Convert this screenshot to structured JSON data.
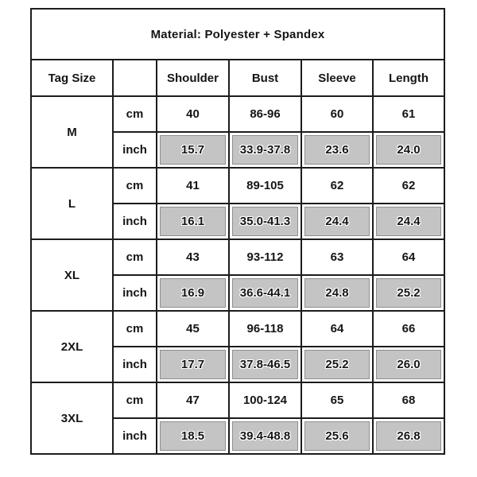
{
  "title": "Material: Polyester + Spandex",
  "columns": [
    "Tag Size",
    "",
    "Shoulder",
    "Bust",
    "Sleeve",
    "Length"
  ],
  "units": [
    "cm",
    "inch"
  ],
  "rows": [
    {
      "size": "M",
      "cm": [
        "40",
        "86-96",
        "60",
        "61"
      ],
      "inch": [
        "15.7",
        "33.9-37.8",
        "23.6",
        "24.0"
      ]
    },
    {
      "size": "L",
      "cm": [
        "41",
        "89-105",
        "62",
        "62"
      ],
      "inch": [
        "16.1",
        "35.0-41.3",
        "24.4",
        "24.4"
      ]
    },
    {
      "size": "XL",
      "cm": [
        "43",
        "93-112",
        "63",
        "64"
      ],
      "inch": [
        "16.9",
        "36.6-44.1",
        "24.8",
        "25.2"
      ]
    },
    {
      "size": "2XL",
      "cm": [
        "45",
        "96-118",
        "64",
        "66"
      ],
      "inch": [
        "17.7",
        "37.8-46.5",
        "25.2",
        "26.0"
      ]
    },
    {
      "size": "3XL",
      "cm": [
        "47",
        "100-124",
        "65",
        "68"
      ],
      "inch": [
        "18.5",
        "39.4-48.8",
        "25.6",
        "26.8"
      ]
    }
  ],
  "colors": {
    "grid": "#1c1c1c",
    "gray_fill": "#c4c4c4",
    "gray_border": "#8e8e8e",
    "text": "#151515",
    "background": "#ffffff"
  }
}
